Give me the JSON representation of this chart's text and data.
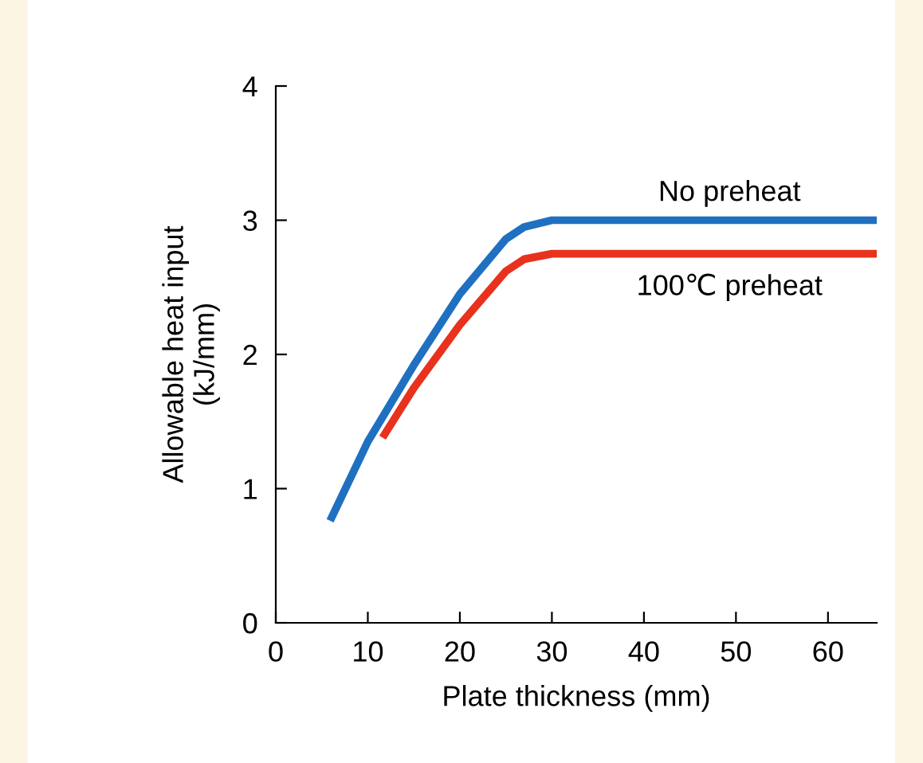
{
  "chart_data": {
    "type": "line",
    "xlabel": "Plate thickness (mm)",
    "ylabel": "Allowable heat input\n(kJ/mm)",
    "xlim": [
      0,
      65.3
    ],
    "ylim": [
      0,
      4
    ],
    "xticks": [
      0,
      10,
      20,
      30,
      40,
      50,
      60
    ],
    "yticks": [
      0,
      1,
      2,
      3,
      4
    ],
    "grid": false,
    "legend": false,
    "series": [
      {
        "name": "No preheat",
        "color": "#1f70c1",
        "x": [
          5.9,
          10,
          15,
          20,
          25,
          27,
          30,
          65.3
        ],
        "values": [
          0.76,
          1.35,
          1.92,
          2.45,
          2.86,
          2.95,
          3.0,
          3.0
        ]
      },
      {
        "name": "100℃ preheat",
        "color": "#e8321e",
        "x": [
          11.6,
          15,
          20,
          25,
          27,
          30,
          65.3
        ],
        "values": [
          1.38,
          1.75,
          2.22,
          2.62,
          2.71,
          2.75,
          2.75
        ]
      }
    ]
  }
}
